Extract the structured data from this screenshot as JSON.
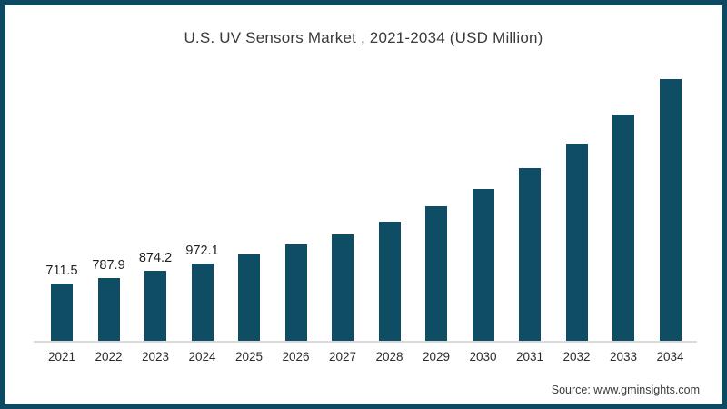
{
  "title": "U.S. UV Sensors Market , 2021-2034 (USD Million)",
  "source": "Source: www.gminsights.com",
  "colors": {
    "bar": "#0e4d63",
    "frame_border": "#0d4a61",
    "axis_line": "#dadada",
    "title_text": "#3a3a3a"
  },
  "chart_data": {
    "type": "bar",
    "title": "U.S. UV Sensors Market , 2021-2034 (USD Million)",
    "categories": [
      "2021",
      "2022",
      "2023",
      "2024",
      "2025",
      "2026",
      "2027",
      "2028",
      "2029",
      "2030",
      "2031",
      "2032",
      "2033",
      "2034"
    ],
    "values": [
      711.5,
      787.9,
      874.2,
      972.1,
      1080,
      1205,
      1330,
      1490,
      1685,
      1905,
      2160,
      2470,
      2835,
      3280
    ],
    "data_labels": [
      "711.5",
      "787.9",
      "874.2",
      "972.1",
      "",
      "",
      "",
      "",
      "",
      "",
      "",
      "",
      "",
      ""
    ],
    "xlabel": "",
    "ylabel": "",
    "ylim": [
      0,
      3300
    ],
    "grid": false,
    "legend": false,
    "y_axis_shown": false,
    "source": "Source: www.gminsights.com"
  }
}
